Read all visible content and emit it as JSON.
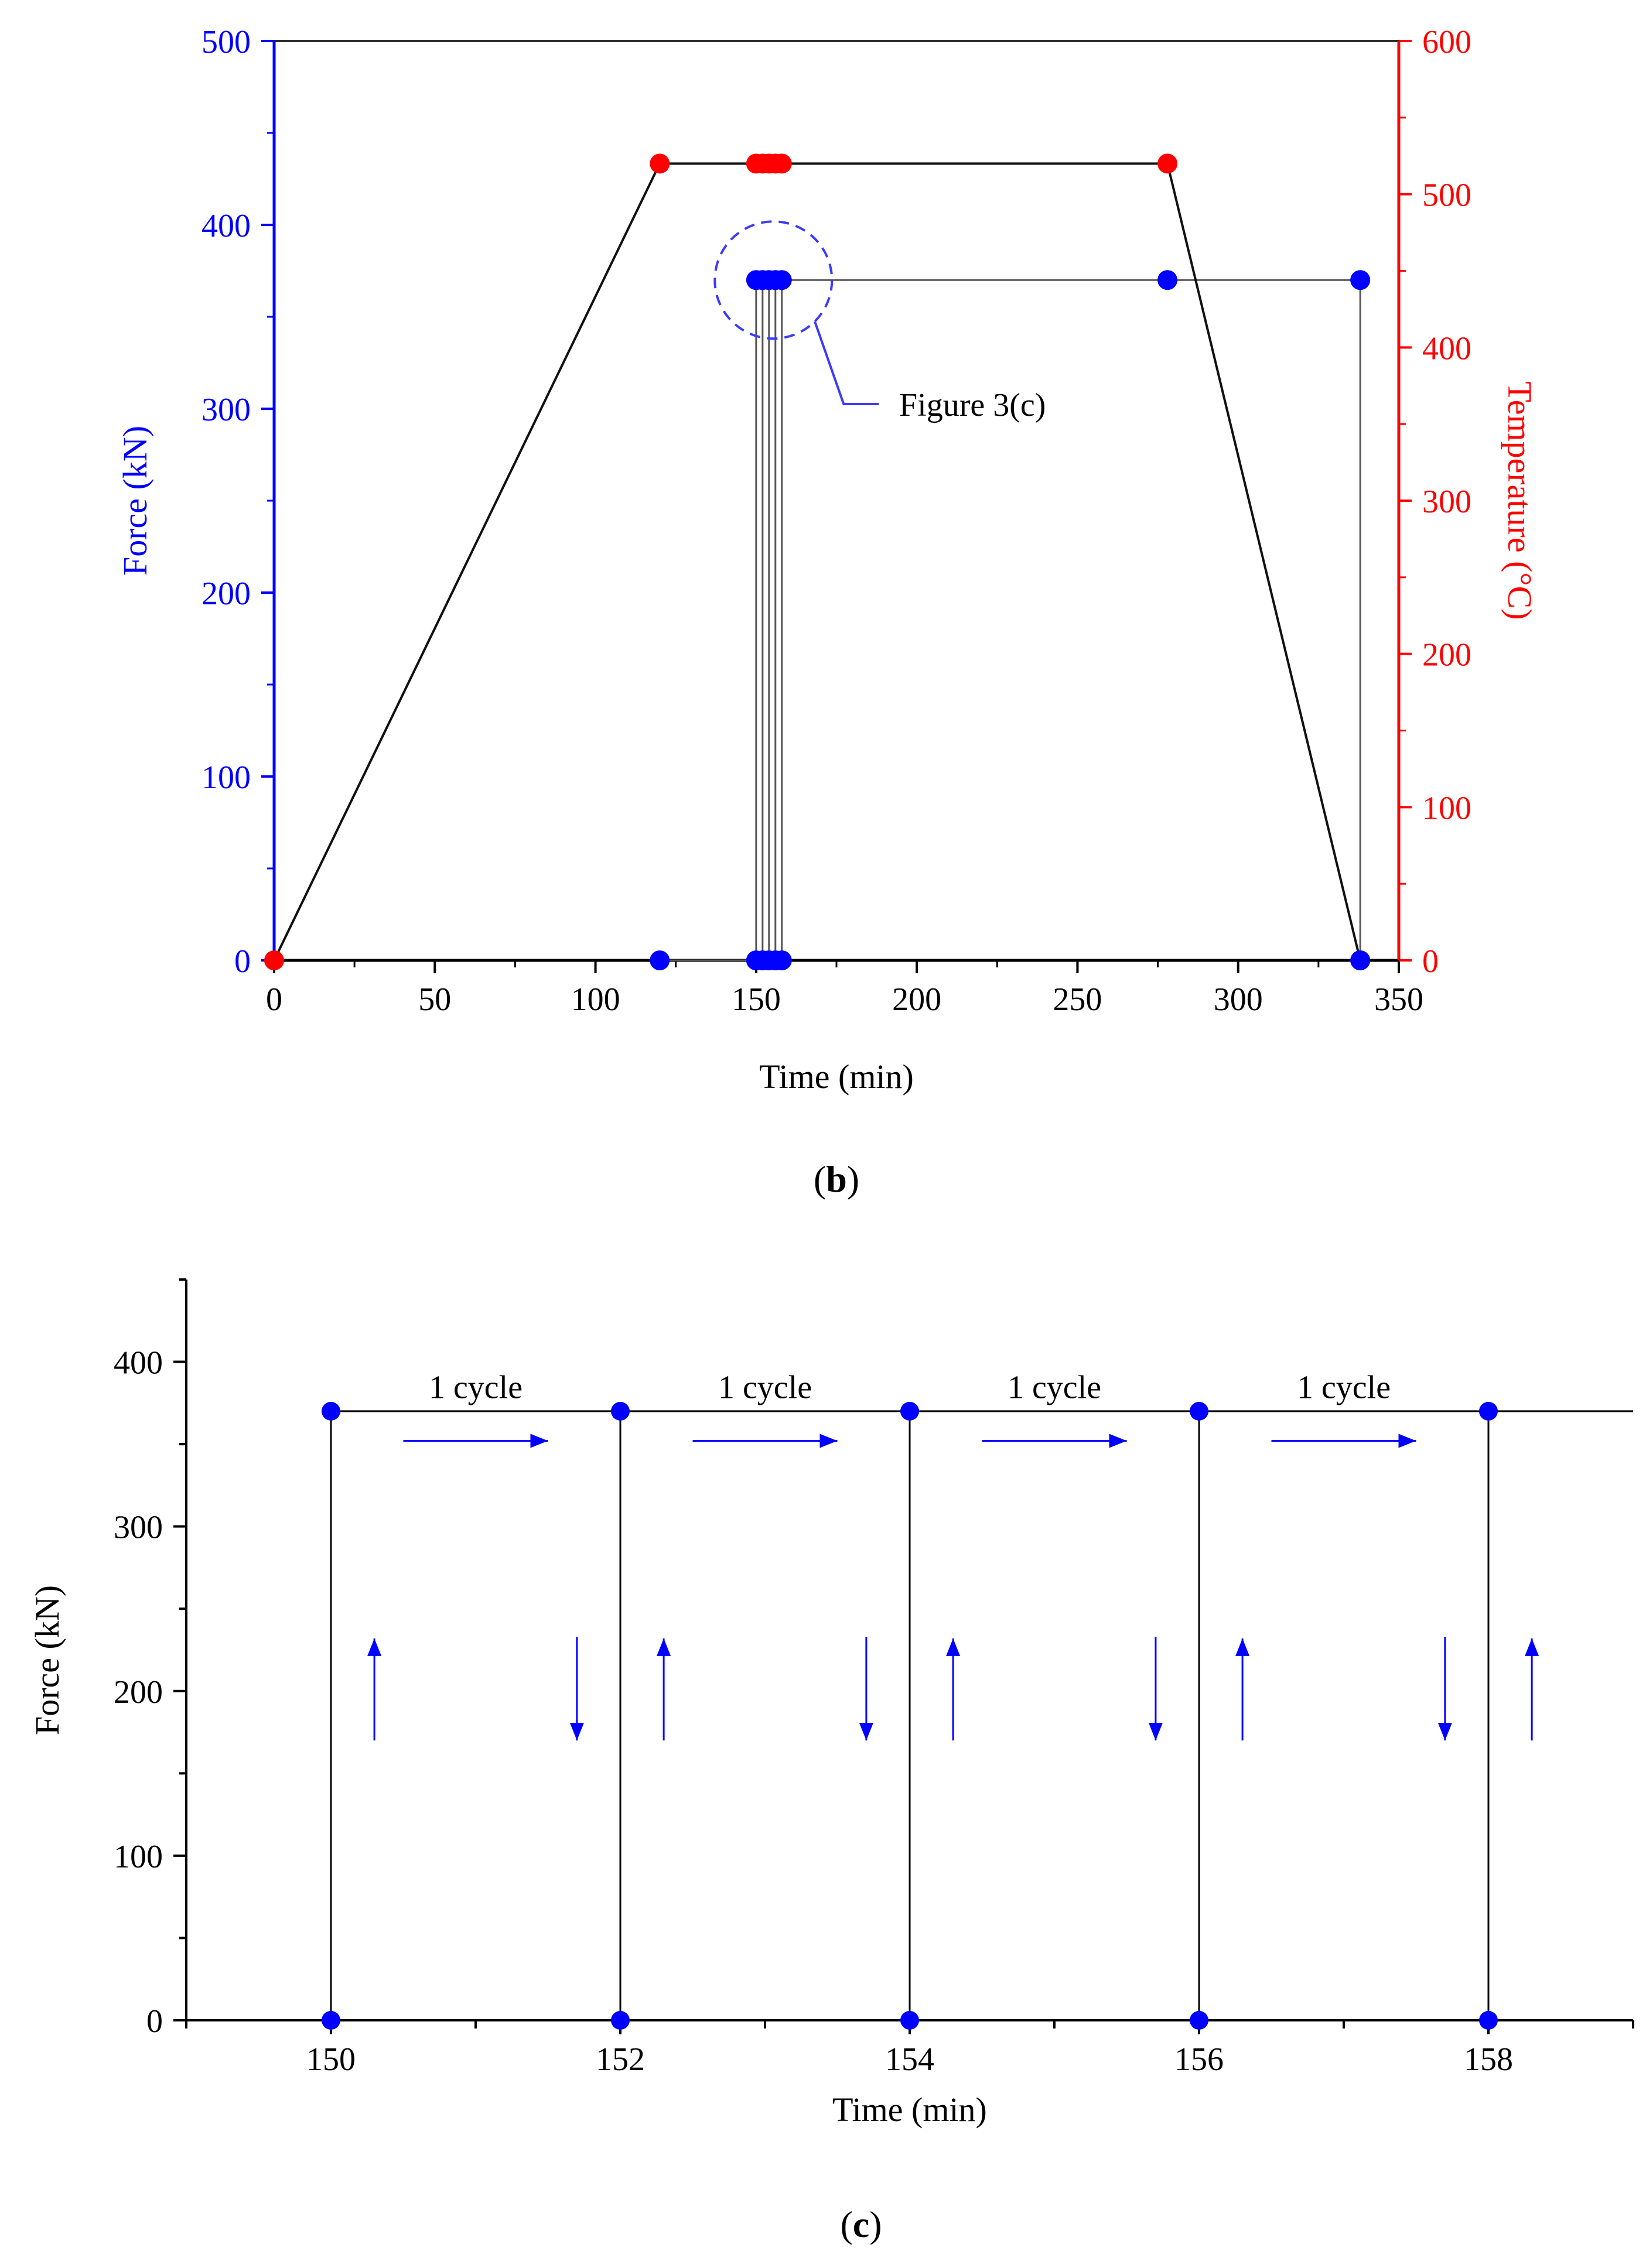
{
  "chart_data": [
    {
      "panel": "b",
      "type": "line",
      "caption": "(b)",
      "caption_letter": "b",
      "xlabel": "Time (min)",
      "ylabel_left": "Force (kN)",
      "ylabel_right": "Temperature (°C)",
      "xlim": [
        0,
        350
      ],
      "ylim_left": [
        0,
        500
      ],
      "ylim_right": [
        0,
        600
      ],
      "x_ticks": [
        0,
        50,
        100,
        150,
        200,
        250,
        300,
        350
      ],
      "y_left_ticks": [
        0,
        100,
        200,
        300,
        400,
        500
      ],
      "y_right_ticks": [
        0,
        100,
        200,
        300,
        400,
        500,
        600
      ],
      "series": [
        {
          "name": "Temperature",
          "axis": "right",
          "color": "#ff0000",
          "points": [
            [
              0,
              0
            ],
            [
              120,
              520
            ],
            [
              150,
              520
            ],
            [
              152,
              520
            ],
            [
              154,
              520
            ],
            [
              156,
              520
            ],
            [
              158,
              520
            ],
            [
              278,
              520
            ],
            [
              338,
              0
            ]
          ]
        },
        {
          "name": "Force",
          "axis": "left",
          "color": "#0000ff",
          "points": [
            [
              120,
              0
            ],
            [
              150,
              0
            ],
            [
              150,
              370
            ],
            [
              152,
              370
            ],
            [
              152,
              0
            ],
            [
              152,
              370
            ],
            [
              154,
              370
            ],
            [
              154,
              0
            ],
            [
              154,
              370
            ],
            [
              156,
              370
            ],
            [
              156,
              0
            ],
            [
              156,
              370
            ],
            [
              158,
              370
            ],
            [
              158,
              0
            ],
            [
              158,
              370
            ],
            [
              278,
              370
            ],
            [
              338,
              370
            ],
            [
              338,
              0
            ]
          ]
        }
      ],
      "annotation": {
        "text": "Figure 3(c)",
        "target_x": 155,
        "target_y": 370
      }
    },
    {
      "panel": "c",
      "type": "line",
      "caption": "(c)",
      "caption_letter": "c",
      "xlabel": "Time (min)",
      "ylabel": "Force (kN)",
      "xlim": [
        149,
        159
      ],
      "ylim": [
        0,
        450
      ],
      "x_ticks": [
        150,
        152,
        154,
        156,
        158
      ],
      "y_ticks": [
        0,
        100,
        200,
        300,
        400
      ],
      "cycle_times": [
        150,
        152,
        154,
        156,
        158
      ],
      "force_peak": 370,
      "cycle_labels": [
        "1 cycle",
        "1 cycle",
        "1 cycle",
        "1 cycle"
      ],
      "line_color": "#000000",
      "marker_color": "#0000ff",
      "arrow_color": "#0000ff"
    }
  ]
}
